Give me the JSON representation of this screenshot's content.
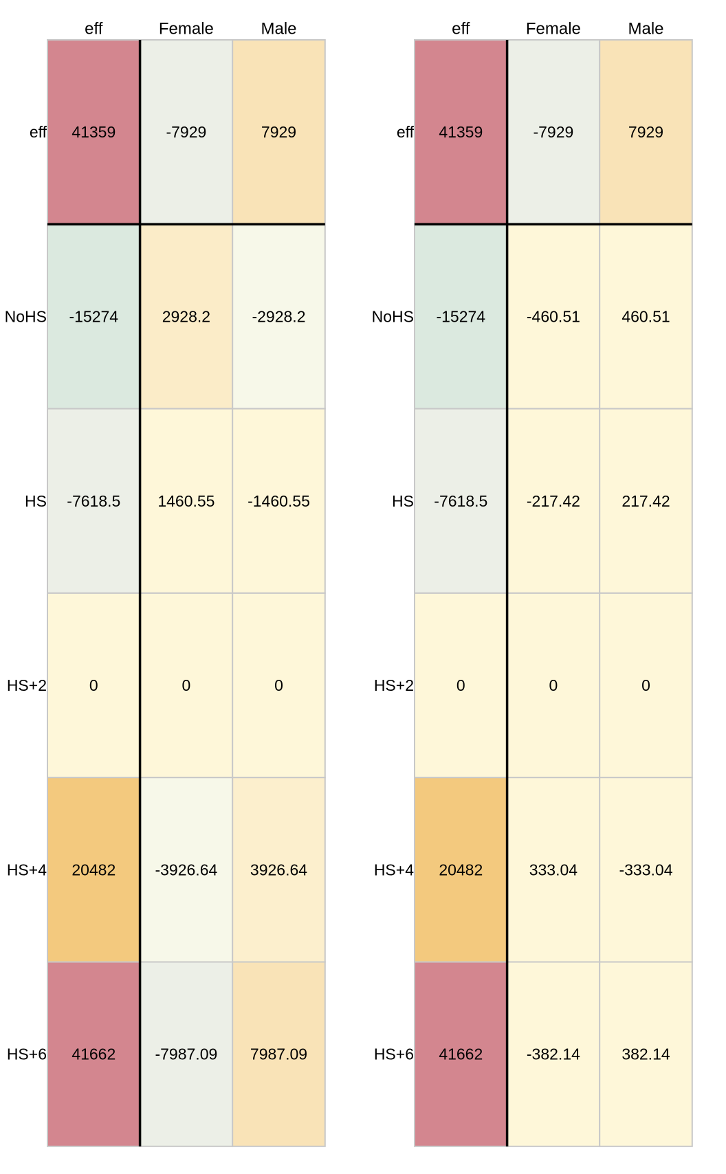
{
  "chart_data": [
    {
      "type": "heatmap",
      "columns": [
        "eff",
        "Female",
        "Male"
      ],
      "rows": [
        "eff",
        "NoHS",
        "HS",
        "HS+2",
        "HS+4",
        "HS+6"
      ],
      "values": [
        [
          "41359",
          "-7929",
          "7929"
        ],
        [
          "-15274",
          "2928.2",
          "-2928.2"
        ],
        [
          "-7618.5",
          "1460.55",
          "-1460.55"
        ],
        [
          "0",
          "0",
          "0"
        ],
        [
          "20482",
          "-3926.64",
          "3926.64"
        ],
        [
          "41662",
          "-7987.09",
          "7987.09"
        ]
      ],
      "cell_colors": [
        [
          "#d3868f",
          "#ecefe7",
          "#f9e3b7"
        ],
        [
          "#dbe9df",
          "#fbecc8",
          "#f7f8e9"
        ],
        [
          "#ecefe7",
          "#fef7d9",
          "#fef7d9"
        ],
        [
          "#fef7d9",
          "#fef7d9",
          "#fef7d9"
        ],
        [
          "#f3c97e",
          "#f7f8e9",
          "#fcefcd"
        ],
        [
          "#d3868f",
          "#ecefe7",
          "#f9e3b7"
        ]
      ]
    },
    {
      "type": "heatmap",
      "columns": [
        "eff",
        "Female",
        "Male"
      ],
      "rows": [
        "eff",
        "NoHS",
        "HS",
        "HS+2",
        "HS+4",
        "HS+6"
      ],
      "values": [
        [
          "41359",
          "-7929",
          "7929"
        ],
        [
          "-15274",
          "-460.51",
          "460.51"
        ],
        [
          "-7618.5",
          "-217.42",
          "217.42"
        ],
        [
          "0",
          "0",
          "0"
        ],
        [
          "20482",
          "333.04",
          "-333.04"
        ],
        [
          "41662",
          "-382.14",
          "382.14"
        ]
      ],
      "cell_colors": [
        [
          "#d3868f",
          "#ecefe7",
          "#f9e3b7"
        ],
        [
          "#dbe9df",
          "#fef7d9",
          "#fef7d9"
        ],
        [
          "#ecefe7",
          "#fef7d9",
          "#fef7d9"
        ],
        [
          "#fef7d9",
          "#fef7d9",
          "#fef7d9"
        ],
        [
          "#f3c97e",
          "#fef7d9",
          "#fef7d9"
        ],
        [
          "#d3868f",
          "#fef7d9",
          "#fef7d9"
        ]
      ]
    }
  ]
}
